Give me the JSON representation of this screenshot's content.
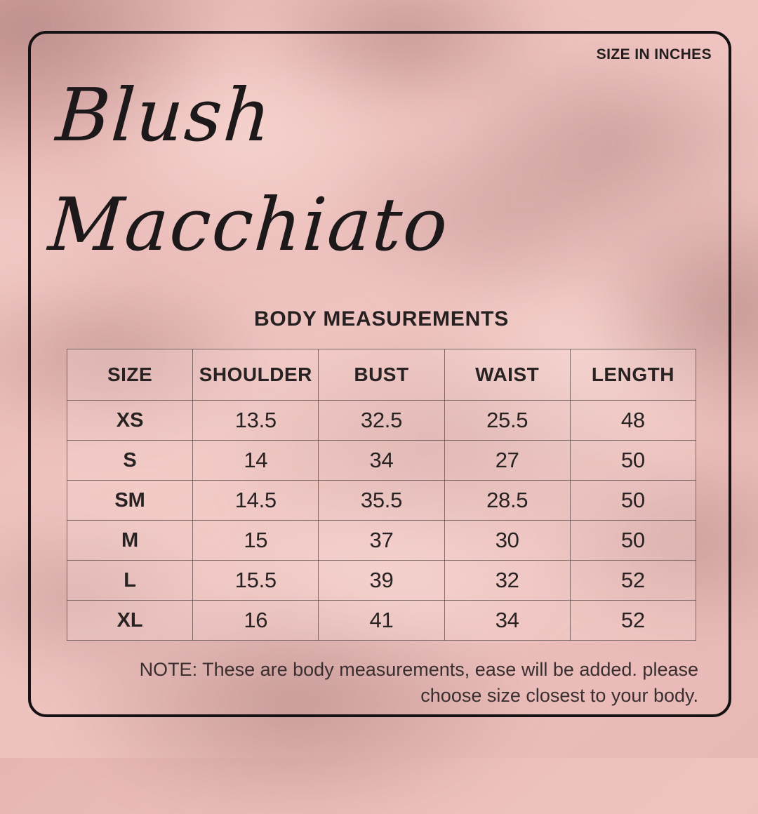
{
  "badge": {
    "size_units_label": "SIZE IN INCHES"
  },
  "title": {
    "line1": "Blush",
    "line2": "Macchiato"
  },
  "section_heading": "BODY MEASUREMENTS",
  "table": {
    "columns": [
      "SIZE",
      "SHOULDER",
      "BUST",
      "WAIST",
      "LENGTH"
    ],
    "rows": [
      [
        "XS",
        "13.5",
        "32.5",
        "25.5",
        "48"
      ],
      [
        "S",
        "14",
        "34",
        "27",
        "50"
      ],
      [
        "SM",
        "14.5",
        "35.5",
        "28.5",
        "50"
      ],
      [
        "M",
        "15",
        "37",
        "30",
        "50"
      ],
      [
        "L",
        "15.5",
        "39",
        "32",
        "52"
      ],
      [
        "XL",
        "16",
        "41",
        "34",
        "52"
      ]
    ]
  },
  "note": {
    "line1": "NOTE: These are body measurements, ease will be added. please",
    "line2": "choose size closest to your body."
  },
  "colors": {
    "background_pink": "#efc4c0",
    "shadow_mauve": "#8e6060",
    "frame_black": "#161214",
    "text_dark": "#221d1e",
    "grid_line": "#5a4e4c"
  }
}
